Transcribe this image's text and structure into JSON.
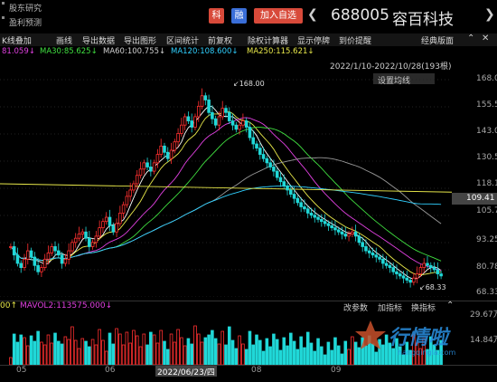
{
  "menu": {
    "item1": "股东研究",
    "item2": "盈利预测"
  },
  "tags": {
    "ke": "科",
    "rong": "融",
    "add_watch": "加入自选"
  },
  "stock": {
    "code": "688005",
    "name": "容百科技"
  },
  "toolbar": {
    "items": [
      "K线叠加",
      "画线",
      "导出数据",
      "导出图形",
      "区间统计",
      "前复权",
      "除权计算器",
      "显示停牌",
      "到价提醒",
      "经典版面"
    ]
  },
  "ma": {
    "ma_partial": "81.059↓",
    "ma30": "MA30:85.625↓",
    "ma60": "MA60:100.755↓",
    "ma120": "MA120:108.600↓",
    "ma250": "MA250:115.621↓",
    "colors": {
      "ma5": "#ffffff",
      "ma10": "#e8e84a",
      "ma20": "#e040e0",
      "ma30": "#40e040",
      "ma60": "#9a9a9a",
      "ma120": "#30d0ff",
      "ma250": "#e8e84a"
    }
  },
  "range": "2022/1/10-2022/10/28(193根)",
  "set_ma": "设置均线",
  "price_axis": [
    "168.00",
    "155.53",
    "143.06",
    "130.59",
    "118.12",
    "105.71",
    "93.25",
    "80.78",
    "68.33"
  ],
  "current_price": "109.41",
  "high_label": "168.00",
  "low_label": "68.33",
  "volume": {
    "label_prefix": "00↑",
    "mavol2": "MAVOL2:113575.000↓",
    "buttons": [
      "改参数",
      "加指标",
      "换指标"
    ],
    "axis": [
      "29.67万",
      "14.84万"
    ]
  },
  "x_axis": {
    "months": [
      "05",
      "06",
      "08",
      "09"
    ],
    "date_highlight": "2022/06/23/四"
  },
  "watermark": {
    "cn": "行情啦",
    "en": "hangqingla.com"
  },
  "chart_data": {
    "type": "candlestick",
    "y_range": [
      64,
      172
    ],
    "high": 168.0,
    "low": 68.33,
    "last": 109.41,
    "closes": [
      88,
      84,
      80,
      78,
      82,
      86,
      83,
      79,
      76,
      78,
      82,
      85,
      88,
      86,
      84,
      80,
      82,
      86,
      90,
      92,
      94,
      95,
      92,
      88,
      90,
      93,
      97,
      100,
      102,
      98,
      95,
      99,
      104,
      108,
      112,
      115,
      118,
      122,
      125,
      128,
      126,
      124,
      128,
      132,
      136,
      133,
      130,
      134,
      138,
      142,
      146,
      150,
      148,
      145,
      150,
      155,
      160,
      158,
      152,
      149,
      146,
      150,
      154,
      152,
      148,
      146,
      144,
      146,
      148,
      145,
      140,
      137,
      135,
      132,
      130,
      128,
      126,
      124,
      121,
      119,
      117,
      115,
      113,
      111,
      109,
      107,
      106,
      104,
      103,
      102,
      101,
      100,
      99,
      98,
      97,
      96,
      95,
      94,
      93,
      94,
      95,
      93,
      90,
      88,
      86,
      85,
      84,
      83,
      82,
      80,
      79,
      78,
      76,
      75,
      74,
      73,
      72,
      71,
      73,
      75,
      78,
      80,
      79,
      78,
      77,
      75,
      74
    ]
  }
}
